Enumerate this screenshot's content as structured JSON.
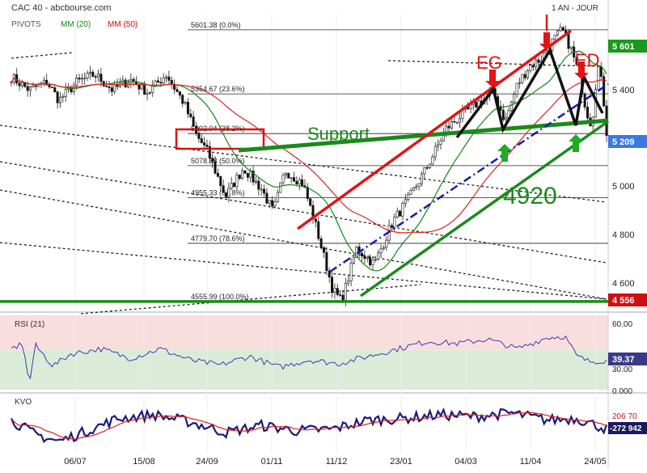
{
  "header": {
    "title": "CAC 40 - abcbourse.com",
    "period": "1 AN - JOUR",
    "legend": [
      {
        "label": "PIVOTS",
        "color": "#555555"
      },
      {
        "label": "MM (20)",
        "color": "#118811"
      },
      {
        "label": "MM (50)",
        "color": "#dd0000"
      }
    ]
  },
  "price_axis": {
    "ticks": [
      "5 400",
      "5 000",
      "4 800",
      "4 600"
    ],
    "badges": [
      {
        "label": "5 601",
        "color": "#1a9a1a"
      },
      {
        "label": "5 209",
        "color": "#3a7ae0"
      },
      {
        "label": "4 556",
        "color": "#cc1111"
      }
    ]
  },
  "fib_levels": [
    {
      "label": "5601.38  (0.0%)"
    },
    {
      "label": "5354.67  (23.6%)"
    },
    {
      "label": "5202.04  (38.2%)"
    },
    {
      "label": "5078.68  (50.0%)"
    },
    {
      "label": "4955.33  (61.8%)"
    },
    {
      "label": "4779.70  (78.6%)"
    },
    {
      "label": "4555.99  (100.0%)"
    }
  ],
  "annotations": {
    "support": "Support",
    "eg": "EG",
    "ed": "ED",
    "target": "4920"
  },
  "rsi": {
    "title": "RSI (21)",
    "ticks": [
      "60.00",
      "30.00",
      "0.000"
    ],
    "badge": "39.37",
    "last_value": 39.37
  },
  "kvo": {
    "title": "KVO",
    "badges": [
      "206 70",
      "-272 942"
    ]
  },
  "x_labels": [
    "06/07",
    "15/08",
    "24/09",
    "01/11",
    "11/12",
    "23/01",
    "04/03",
    "11/04",
    "24/05"
  ],
  "chart_data": {
    "type": "line",
    "title": "CAC 40",
    "x_range": [
      "2018-06",
      "2019-05"
    ],
    "price_knots": [
      [
        0.0,
        5420
      ],
      [
        0.03,
        5370
      ],
      [
        0.06,
        5400
      ],
      [
        0.08,
        5330
      ],
      [
        0.11,
        5400
      ],
      [
        0.14,
        5430
      ],
      [
        0.17,
        5370
      ],
      [
        0.2,
        5410
      ],
      [
        0.23,
        5360
      ],
      [
        0.26,
        5430
      ],
      [
        0.29,
        5320
      ],
      [
        0.31,
        5200
      ],
      [
        0.33,
        5130
      ],
      [
        0.36,
        4960
      ],
      [
        0.39,
        5070
      ],
      [
        0.42,
        4990
      ],
      [
        0.44,
        4900
      ],
      [
        0.46,
        5060
      ],
      [
        0.49,
        5010
      ],
      [
        0.51,
        4860
      ],
      [
        0.54,
        4600
      ],
      [
        0.555,
        4556
      ],
      [
        0.58,
        4760
      ],
      [
        0.61,
        4700
      ],
      [
        0.64,
        4860
      ],
      [
        0.67,
        4960
      ],
      [
        0.7,
        5080
      ],
      [
        0.73,
        5220
      ],
      [
        0.76,
        5280
      ],
      [
        0.79,
        5330
      ],
      [
        0.81,
        5360
      ],
      [
        0.83,
        5250
      ],
      [
        0.85,
        5390
      ],
      [
        0.87,
        5460
      ],
      [
        0.89,
        5490
      ],
      [
        0.91,
        5560
      ],
      [
        0.925,
        5601
      ],
      [
        0.94,
        5530
      ],
      [
        0.955,
        5420
      ],
      [
        0.965,
        5300
      ],
      [
        0.975,
        5230
      ],
      [
        0.985,
        5470
      ],
      [
        0.993,
        5380
      ],
      [
        1.0,
        5209
      ]
    ],
    "rsi_knots": [
      [
        0.0,
        55
      ],
      [
        0.02,
        62
      ],
      [
        0.03,
        5
      ],
      [
        0.04,
        60
      ],
      [
        0.07,
        32
      ],
      [
        0.1,
        48
      ],
      [
        0.15,
        55
      ],
      [
        0.2,
        42
      ],
      [
        0.25,
        55
      ],
      [
        0.3,
        40
      ],
      [
        0.35,
        33
      ],
      [
        0.4,
        45
      ],
      [
        0.45,
        30
      ],
      [
        0.5,
        40
      ],
      [
        0.55,
        35
      ],
      [
        0.6,
        45
      ],
      [
        0.65,
        55
      ],
      [
        0.7,
        65
      ],
      [
        0.75,
        62
      ],
      [
        0.8,
        68
      ],
      [
        0.85,
        55
      ],
      [
        0.9,
        70
      ],
      [
        0.93,
        72
      ],
      [
        0.95,
        45
      ],
      [
        0.97,
        38
      ],
      [
        1.0,
        39.37
      ]
    ],
    "kvo_knots": [
      [
        0.0,
        0.2
      ],
      [
        0.04,
        -0.6
      ],
      [
        0.08,
        -1.0
      ],
      [
        0.12,
        -0.5
      ],
      [
        0.18,
        0.3
      ],
      [
        0.24,
        0.5
      ],
      [
        0.3,
        0.1
      ],
      [
        0.36,
        -0.5
      ],
      [
        0.42,
        -0.1
      ],
      [
        0.48,
        -0.4
      ],
      [
        0.54,
        -0.3
      ],
      [
        0.6,
        0.2
      ],
      [
        0.66,
        0.3
      ],
      [
        0.72,
        0.5
      ],
      [
        0.78,
        0.4
      ],
      [
        0.84,
        0.6
      ],
      [
        0.9,
        0.2
      ],
      [
        0.95,
        0.3
      ],
      [
        1.0,
        -0.3
      ]
    ]
  }
}
